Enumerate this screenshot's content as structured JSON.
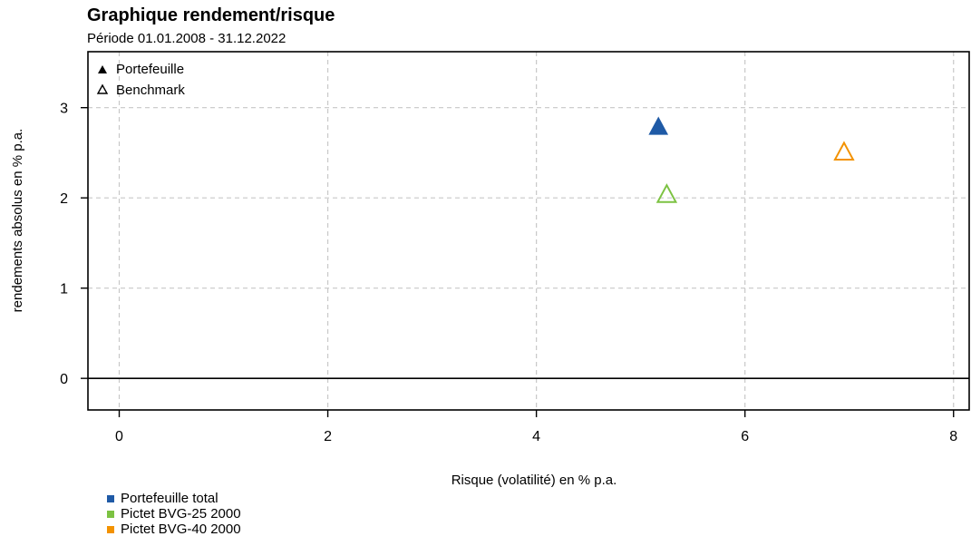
{
  "chart_data": {
    "type": "scatter",
    "title": "Graphique rendement/risque",
    "subtitle": "Période 01.01.2008 - 31.12.2022",
    "xlabel": "Risque (volatilité) en % p.a.",
    "ylabel": "rendements absolus en % p.a.",
    "xlim": [
      -0.3,
      8.15
    ],
    "ylim": [
      -0.35,
      3.62
    ],
    "xticks": [
      0,
      2,
      4,
      6,
      8
    ],
    "yticks": [
      0,
      1,
      2,
      3
    ],
    "grid": true,
    "points": [
      {
        "name": "Portefeuille total",
        "type": "portfolio",
        "x": 5.17,
        "y": 2.79,
        "color": "#1f5aa6"
      },
      {
        "name": "Pictet BVG-25 2000",
        "type": "benchmark",
        "x": 5.25,
        "y": 2.04,
        "color": "#7cc242"
      },
      {
        "name": "Pictet BVG-40 2000",
        "type": "benchmark",
        "x": 6.95,
        "y": 2.51,
        "color": "#f39200"
      }
    ],
    "marker_legend": {
      "position": "top-left",
      "items": [
        {
          "label": "Portefeuille",
          "marker": "filled-triangle-icon"
        },
        {
          "label": "Benchmark",
          "marker": "open-triangle-icon"
        }
      ]
    },
    "series_legend": {
      "position": "bottom-left",
      "items": [
        {
          "label": "Portefeuille total",
          "color": "#1f5aa6"
        },
        {
          "label": "Pictet BVG-25 2000",
          "color": "#7cc242"
        },
        {
          "label": "Pictet BVG-40 2000",
          "color": "#f39200"
        }
      ]
    }
  }
}
